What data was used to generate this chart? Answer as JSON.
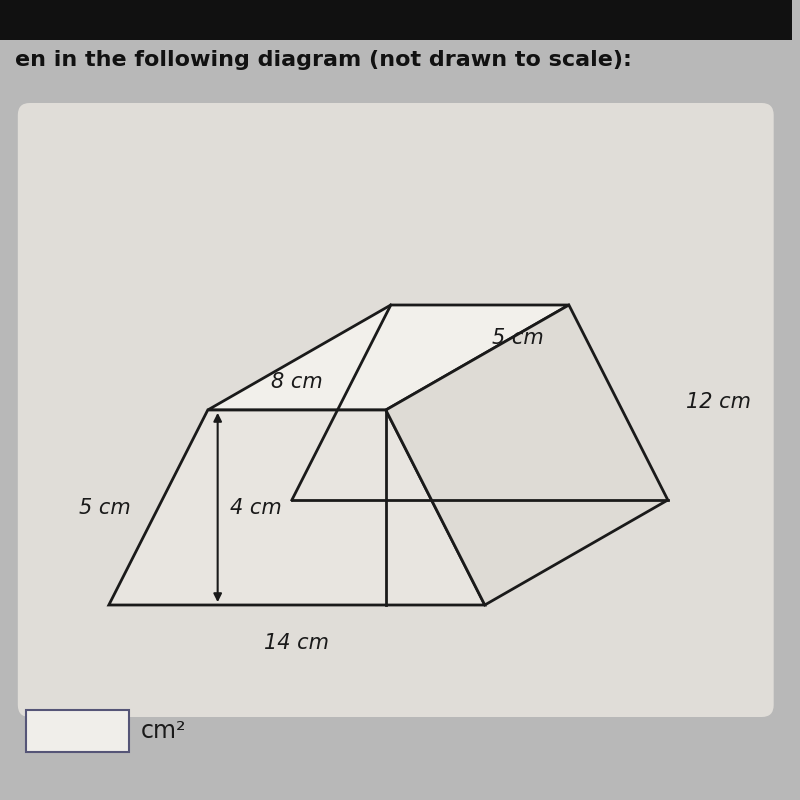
{
  "title_text": "en in the following diagram (not drawn to scale):",
  "title_fontsize": 16,
  "bg_top_color": "#1a1a1a",
  "bg_main_color": "#b8b8b8",
  "card_color": "#e0ddd8",
  "line_color": "#1a1a1a",
  "line_width": 2.0,
  "label_8cm": "8 cm",
  "label_5cm_left": "5 cm",
  "label_4cm": "4 cm",
  "label_14cm": "14 cm",
  "label_5cm_right": "5 cm",
  "label_12cm": "12 cm",
  "label_cm2": "cm²",
  "font_size_labels": 15,
  "font_style": "italic"
}
